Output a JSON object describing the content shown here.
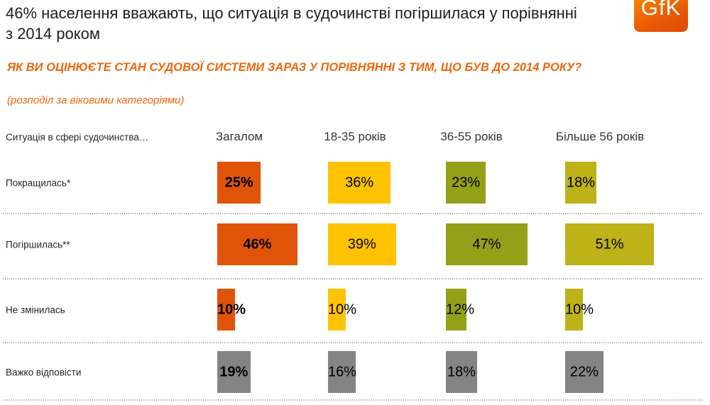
{
  "slide": {
    "title": "46% населення вважають, що ситуація в судочинстві погіршилася у порівнянні з 2014 роком",
    "question": "ЯК ВИ ОЦІНЮЄТЕ СТАН СУДОВОЇ СИСТЕМИ ЗАРАЗ У ПОРІВНЯННІ З ТИМ, ЩО БУВ ДО 2014 РОКУ?",
    "note": "(розподіл за віковими категоріями)",
    "accent_color": "#f0650c"
  },
  "logo": {
    "text": "GfK",
    "color_top": "#f08300",
    "color_bottom": "#dc4a05"
  },
  "chart_data": {
    "type": "bar",
    "title": "46% населення вважають, що ситуація в судочинстві погіршилася у порівнянні з 2014 роком",
    "subtitle": "ЯК ВИ ОЦІНЮЄТЕ СТАН СУДОВОЇ СИСТЕМИ ЗАРАЗ У ПОРІВНЯННІ З ТИМ, ЩО БУВ ДО 2014 РОКУ? (розподіл за віковими категоріями)",
    "row_axis_label": "Ситуація в сфері судочинства…",
    "categories": [
      "Загалом",
      "18-35 років",
      "36-55 років",
      "Більше 56 років"
    ],
    "rows": [
      {
        "label": "Покращилась*",
        "values": [
          25,
          36,
          23,
          18
        ]
      },
      {
        "label": "Погіршилась**",
        "values": [
          46,
          39,
          47,
          51
        ]
      },
      {
        "label": "Не змінилась",
        "values": [
          10,
          10,
          12,
          10
        ]
      },
      {
        "label": "Важко відповісти",
        "values": [
          19,
          16,
          18,
          22
        ]
      }
    ],
    "unit": "%",
    "category_colors": [
      "#e0540a",
      "#ffc303",
      "#93a018",
      "#bdb218"
    ],
    "dont_know_row_label": "Важко відповісти",
    "dont_know_row_color": "#848484",
    "emphasized_category": "Загалом",
    "value_label_position": "inside",
    "grid": "dotted-row-separators",
    "legend_position": "none",
    "xlim": [
      0,
      100
    ]
  }
}
